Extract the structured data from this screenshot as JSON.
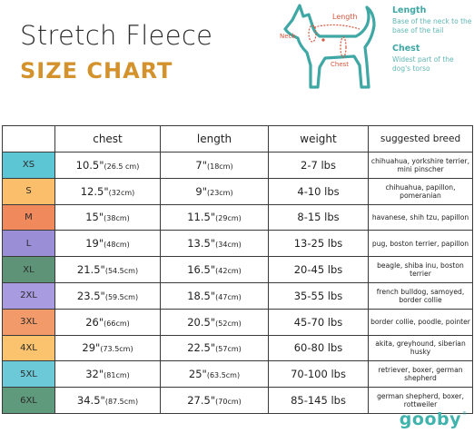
{
  "header": {
    "title": "Stretch Fleece",
    "subtitle": "SIZE CHART"
  },
  "diagram": {
    "neck_label": "Neck",
    "length_label": "Length",
    "chest_label": "Chest",
    "dog_color": "#3fa7a4",
    "measure_color": "#d9563c"
  },
  "legend": {
    "length_title": "Length",
    "length_desc": "Base of the neck to the base of the tail",
    "chest_title": "Chest",
    "chest_desc": "Widest part of the dog's torso"
  },
  "table": {
    "headers": [
      "chest",
      "length",
      "weight",
      "suggested breed"
    ],
    "rows": [
      {
        "size": "XS",
        "color": "#5cc6d4",
        "chest": "10.5\"",
        "chest_cm": "(26.5 cm)",
        "length": "7\"",
        "length_cm": "(18cm)",
        "weight": "2-7 lbs",
        "breed": "chihuahua, yorkshire terrier, mini pinscher"
      },
      {
        "size": "S",
        "color": "#fbbf6b",
        "chest": "12.5\"",
        "chest_cm": "(32cm)",
        "length": "9\"",
        "length_cm": "(23cm)",
        "weight": "4-10 lbs",
        "breed": "chihuahua, papillon, pomeranian"
      },
      {
        "size": "M",
        "color": "#f08a5d",
        "chest": "15\"",
        "chest_cm": "(38cm)",
        "length": "11.5\"",
        "length_cm": "(29cm)",
        "weight": "8-15 lbs",
        "breed": "havanese, shih tzu, papillon"
      },
      {
        "size": "L",
        "color": "#9a8ed6",
        "chest": "19\"",
        "chest_cm": "(48cm)",
        "length": "13.5\"",
        "length_cm": "(34cm)",
        "weight": "13-25 lbs",
        "breed": "pug, boston terrier, papillon"
      },
      {
        "size": "XL",
        "color": "#5f9377",
        "chest": "21.5\"",
        "chest_cm": "(54.5cm)",
        "length": "16.5\"",
        "length_cm": "(42cm)",
        "weight": "20-45 lbs",
        "breed": "beagle, shiba inu, boston terrier"
      },
      {
        "size": "2XL",
        "color": "#a99be0",
        "chest": "23.5\"",
        "chest_cm": "(59.5cm)",
        "length": "18.5\"",
        "length_cm": "(47cm)",
        "weight": "35-55 lbs",
        "breed": "french bulldog, samoyed, border collie"
      },
      {
        "size": "3XL",
        "color": "#f39a6a",
        "chest": "26\"",
        "chest_cm": "(66cm)",
        "length": "20.5\"",
        "length_cm": "(52cm)",
        "weight": "45-70 lbs",
        "breed": "border collie, poodle, pointer"
      },
      {
        "size": "4XL",
        "color": "#fbc36e",
        "chest": "29\"",
        "chest_cm": "(73.5cm)",
        "length": "22.5\"",
        "length_cm": "(57cm)",
        "weight": "60-80 lbs",
        "breed": "akita, greyhound, siberian husky"
      },
      {
        "size": "5XL",
        "color": "#6cc9d7",
        "chest": "32\"",
        "chest_cm": "(81cm)",
        "length": "25\"",
        "length_cm": "(63.5cm)",
        "weight": "70-100 lbs",
        "breed": "retriever, boxer, german shepherd"
      },
      {
        "size": "6XL",
        "color": "#5f9a7c",
        "chest": "34.5\"",
        "chest_cm": "(87.5cm)",
        "length": "27.5\"",
        "length_cm": "(70cm)",
        "weight": "85-145 lbs",
        "breed": "german shepherd, boxer, rottweiler"
      }
    ]
  },
  "brand": {
    "logo": "gooby",
    "reg": "®",
    "color": "#3fb3ac"
  }
}
